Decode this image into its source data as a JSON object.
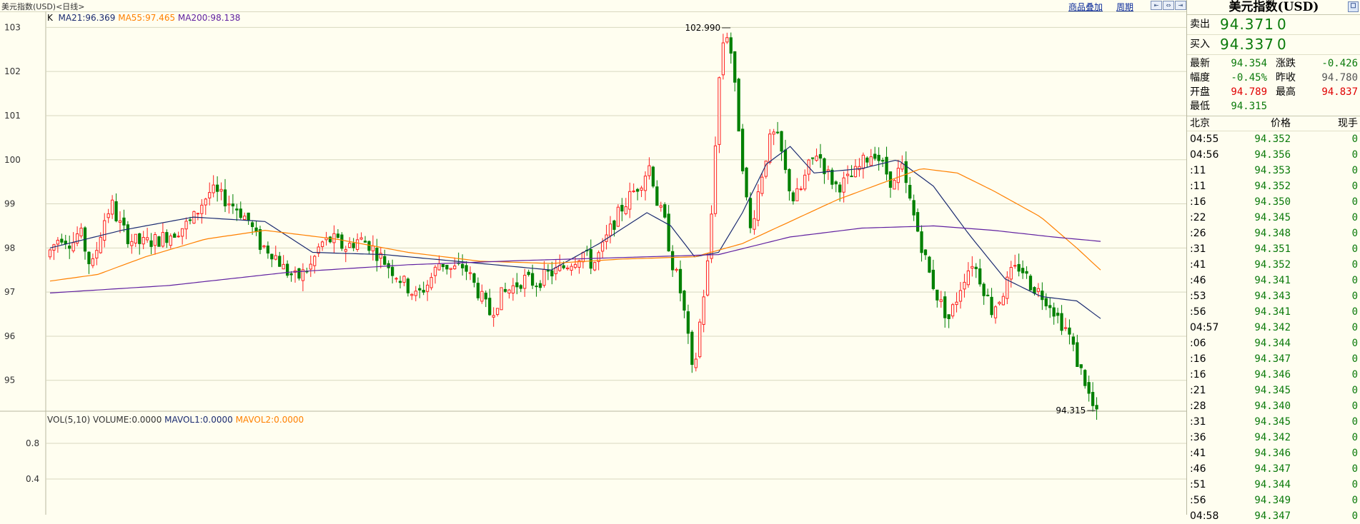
{
  "header": {
    "title": "美元指数(USD)<日线>",
    "link_overlay": "商品叠加",
    "link_period": "周期"
  },
  "legends": {
    "k": "K",
    "ma21": "MA21:96.369",
    "ma55": "MA55:97.465",
    "ma200": "MA200:98.138",
    "vol": "VOL(5,10)",
    "volume": "VOLUME:0.0000",
    "mavol1": "MAVOL1:0.0000",
    "mavol2": "MAVOL2:0.0000"
  },
  "colors": {
    "up": "#ff2020",
    "down": "#008000",
    "ma21": "#1a2a70",
    "ma55": "#ff8000",
    "ma200": "#6020a0",
    "grid": "#d8d8c0"
  },
  "chart_data": {
    "type": "candlestick",
    "ylim": [
      94.3,
      103.2
    ],
    "yticks": [
      "103",
      "102",
      "101",
      "100",
      "99",
      "98",
      "97",
      "96",
      "95"
    ],
    "vol_ylim": [
      0,
      1.0
    ],
    "vol_yticks": [
      "0.8",
      "0.4"
    ],
    "annotations": {
      "high": "102.990",
      "low": "94.315"
    },
    "ohlc_path": [
      [
        0,
        97.8
      ],
      [
        12,
        98.3
      ],
      [
        22,
        98.1
      ],
      [
        28,
        98.4
      ],
      [
        38,
        97.5
      ],
      [
        48,
        98.6
      ],
      [
        55,
        99.0
      ],
      [
        60,
        98.6
      ],
      [
        70,
        98.2
      ],
      [
        80,
        98.1
      ],
      [
        95,
        98.2
      ],
      [
        110,
        98.4
      ],
      [
        122,
        98.6
      ],
      [
        130,
        99.0
      ],
      [
        138,
        99.3
      ],
      [
        150,
        99.1
      ],
      [
        160,
        98.9
      ],
      [
        170,
        98.6
      ],
      [
        178,
        98.1
      ],
      [
        190,
        97.9
      ],
      [
        200,
        97.5
      ],
      [
        210,
        97.3
      ],
      [
        222,
        97.6
      ],
      [
        230,
        98.1
      ],
      [
        240,
        98.2
      ],
      [
        250,
        98.0
      ],
      [
        262,
        98.2
      ],
      [
        270,
        98.1
      ],
      [
        280,
        97.8
      ],
      [
        290,
        97.5
      ],
      [
        300,
        97.2
      ],
      [
        310,
        96.9
      ],
      [
        320,
        97.2
      ],
      [
        330,
        97.7
      ],
      [
        340,
        97.5
      ],
      [
        350,
        97.6
      ],
      [
        358,
        97.2
      ],
      [
        366,
        96.8
      ],
      [
        372,
        96.5
      ],
      [
        380,
        96.9
      ],
      [
        390,
        97.1
      ],
      [
        400,
        97.3
      ],
      [
        410,
        97.2
      ],
      [
        420,
        97.4
      ],
      [
        430,
        97.5
      ],
      [
        440,
        97.7
      ],
      [
        450,
        97.9
      ],
      [
        458,
        97.6
      ],
      [
        466,
        98.0
      ],
      [
        474,
        98.5
      ],
      [
        482,
        98.9
      ],
      [
        490,
        99.2
      ],
      [
        498,
        99.5
      ],
      [
        506,
        99.9
      ],
      [
        512,
        99.0
      ],
      [
        518,
        98.6
      ],
      [
        524,
        97.7
      ],
      [
        530,
        97.2
      ],
      [
        536,
        96.3
      ],
      [
        542,
        95.0
      ],
      [
        548,
        96.4
      ],
      [
        554,
        97.6
      ],
      [
        558,
        99.0
      ],
      [
        562,
        101.2
      ],
      [
        566,
        102.6
      ],
      [
        570,
        102.9
      ],
      [
        574,
        102.4
      ],
      [
        578,
        101.3
      ],
      [
        582,
        100.3
      ],
      [
        586,
        99.2
      ],
      [
        590,
        98.4
      ],
      [
        596,
        99.2
      ],
      [
        602,
        100.0
      ],
      [
        608,
        100.6
      ],
      [
        614,
        100.4
      ],
      [
        620,
        99.6
      ],
      [
        626,
        99.1
      ],
      [
        632,
        99.3
      ],
      [
        638,
        99.8
      ],
      [
        646,
        100.2
      ],
      [
        654,
        99.7
      ],
      [
        662,
        99.4
      ],
      [
        670,
        99.5
      ],
      [
        678,
        99.7
      ],
      [
        686,
        100.0
      ],
      [
        694,
        100.2
      ],
      [
        702,
        99.8
      ],
      [
        710,
        99.4
      ],
      [
        716,
        99.9
      ],
      [
        722,
        99.2
      ],
      [
        728,
        98.6
      ],
      [
        734,
        98.0
      ],
      [
        740,
        97.4
      ],
      [
        748,
        96.8
      ],
      [
        756,
        96.4
      ],
      [
        762,
        96.8
      ],
      [
        768,
        97.3
      ],
      [
        776,
        97.7
      ],
      [
        784,
        97.2
      ],
      [
        792,
        96.6
      ],
      [
        800,
        96.9
      ],
      [
        808,
        97.4
      ],
      [
        816,
        97.6
      ],
      [
        824,
        97.2
      ],
      [
        832,
        97.0
      ],
      [
        840,
        96.8
      ],
      [
        848,
        96.4
      ],
      [
        856,
        96.1
      ],
      [
        864,
        95.4
      ],
      [
        870,
        95.0
      ],
      [
        876,
        94.4
      ]
    ],
    "series": [
      {
        "name": "MA21",
        "points": [
          [
            0,
            98.0
          ],
          [
            60,
            98.4
          ],
          [
            120,
            98.7
          ],
          [
            180,
            98.6
          ],
          [
            220,
            97.9
          ],
          [
            280,
            97.85
          ],
          [
            320,
            97.75
          ],
          [
            380,
            97.6
          ],
          [
            420,
            97.5
          ],
          [
            460,
            98.1
          ],
          [
            500,
            98.8
          ],
          [
            520,
            98.5
          ],
          [
            540,
            97.8
          ],
          [
            560,
            97.9
          ],
          [
            580,
            98.8
          ],
          [
            600,
            99.9
          ],
          [
            620,
            100.3
          ],
          [
            640,
            99.7
          ],
          [
            680,
            99.8
          ],
          [
            710,
            100.0
          ],
          [
            740,
            99.4
          ],
          [
            770,
            98.3
          ],
          [
            800,
            97.3
          ],
          [
            830,
            96.9
          ],
          [
            860,
            96.8
          ],
          [
            880,
            96.4
          ]
        ]
      },
      {
        "name": "MA55",
        "points": [
          [
            0,
            97.25
          ],
          [
            40,
            97.4
          ],
          [
            80,
            97.8
          ],
          [
            130,
            98.2
          ],
          [
            180,
            98.4
          ],
          [
            240,
            98.2
          ],
          [
            300,
            97.9
          ],
          [
            360,
            97.7
          ],
          [
            420,
            97.65
          ],
          [
            480,
            97.75
          ],
          [
            540,
            97.8
          ],
          [
            580,
            98.1
          ],
          [
            620,
            98.6
          ],
          [
            660,
            99.1
          ],
          [
            700,
            99.5
          ],
          [
            730,
            99.8
          ],
          [
            760,
            99.7
          ],
          [
            790,
            99.3
          ],
          [
            830,
            98.7
          ],
          [
            860,
            98.0
          ],
          [
            880,
            97.5
          ]
        ]
      },
      {
        "name": "MA200",
        "points": [
          [
            0,
            96.98
          ],
          [
            100,
            97.15
          ],
          [
            200,
            97.45
          ],
          [
            300,
            97.62
          ],
          [
            400,
            97.72
          ],
          [
            500,
            97.8
          ],
          [
            560,
            97.85
          ],
          [
            620,
            98.25
          ],
          [
            680,
            98.45
          ],
          [
            740,
            98.5
          ],
          [
            790,
            98.4
          ],
          [
            840,
            98.25
          ],
          [
            880,
            98.15
          ]
        ]
      }
    ]
  },
  "panel": {
    "title": "美元指数(USD)",
    "sell_label": "卖出",
    "sell_price": "94.371",
    "sell_vol": "0",
    "buy_label": "买入",
    "buy_price": "94.337",
    "buy_vol": "0",
    "stats": [
      {
        "l1": "最新",
        "v1": "94.354",
        "c1": "#0a7a0a",
        "l2": "涨跌",
        "v2": "-0.426",
        "c2": "#0a7a0a"
      },
      {
        "l1": "幅度",
        "v1": "-0.45%",
        "c1": "#0a7a0a",
        "l2": "昨收",
        "v2": "94.780",
        "c2": "#555555"
      },
      {
        "l1": "开盘",
        "v1": "94.789",
        "c1": "#e00000",
        "l2": "最高",
        "v2": "94.837",
        "c2": "#e00000"
      },
      {
        "l1": "最低",
        "v1": "94.315",
        "c1": "#0a7a0a",
        "l2": "",
        "v2": "",
        "c2": "#000000"
      }
    ],
    "table_header": {
      "time": "北京",
      "price": "价格",
      "qty": "现手"
    },
    "ticks": [
      {
        "t": "04:55",
        "p": "94.352",
        "q": "0"
      },
      {
        "t": "04:56",
        "p": "94.356",
        "q": "0"
      },
      {
        "t": ":11",
        "p": "94.353",
        "q": "0"
      },
      {
        "t": ":11",
        "p": "94.352",
        "q": "0"
      },
      {
        "t": ":16",
        "p": "94.350",
        "q": "0"
      },
      {
        "t": ":22",
        "p": "94.345",
        "q": "0"
      },
      {
        "t": ":26",
        "p": "94.348",
        "q": "0"
      },
      {
        "t": ":31",
        "p": "94.351",
        "q": "0"
      },
      {
        "t": ":41",
        "p": "94.352",
        "q": "0"
      },
      {
        "t": ":46",
        "p": "94.341",
        "q": "0"
      },
      {
        "t": ":53",
        "p": "94.343",
        "q": "0"
      },
      {
        "t": ":56",
        "p": "94.341",
        "q": "0"
      },
      {
        "t": "04:57",
        "p": "94.342",
        "q": "0"
      },
      {
        "t": ":06",
        "p": "94.344",
        "q": "0"
      },
      {
        "t": ":16",
        "p": "94.347",
        "q": "0"
      },
      {
        "t": ":16",
        "p": "94.346",
        "q": "0"
      },
      {
        "t": ":21",
        "p": "94.345",
        "q": "0"
      },
      {
        "t": ":28",
        "p": "94.340",
        "q": "0"
      },
      {
        "t": ":31",
        "p": "94.345",
        "q": "0"
      },
      {
        "t": ":36",
        "p": "94.342",
        "q": "0"
      },
      {
        "t": ":41",
        "p": "94.346",
        "q": "0"
      },
      {
        "t": ":46",
        "p": "94.347",
        "q": "0"
      },
      {
        "t": ":51",
        "p": "94.344",
        "q": "0"
      },
      {
        "t": ":56",
        "p": "94.349",
        "q": "0"
      },
      {
        "t": "04:58",
        "p": "94.347",
        "q": "0"
      }
    ]
  }
}
